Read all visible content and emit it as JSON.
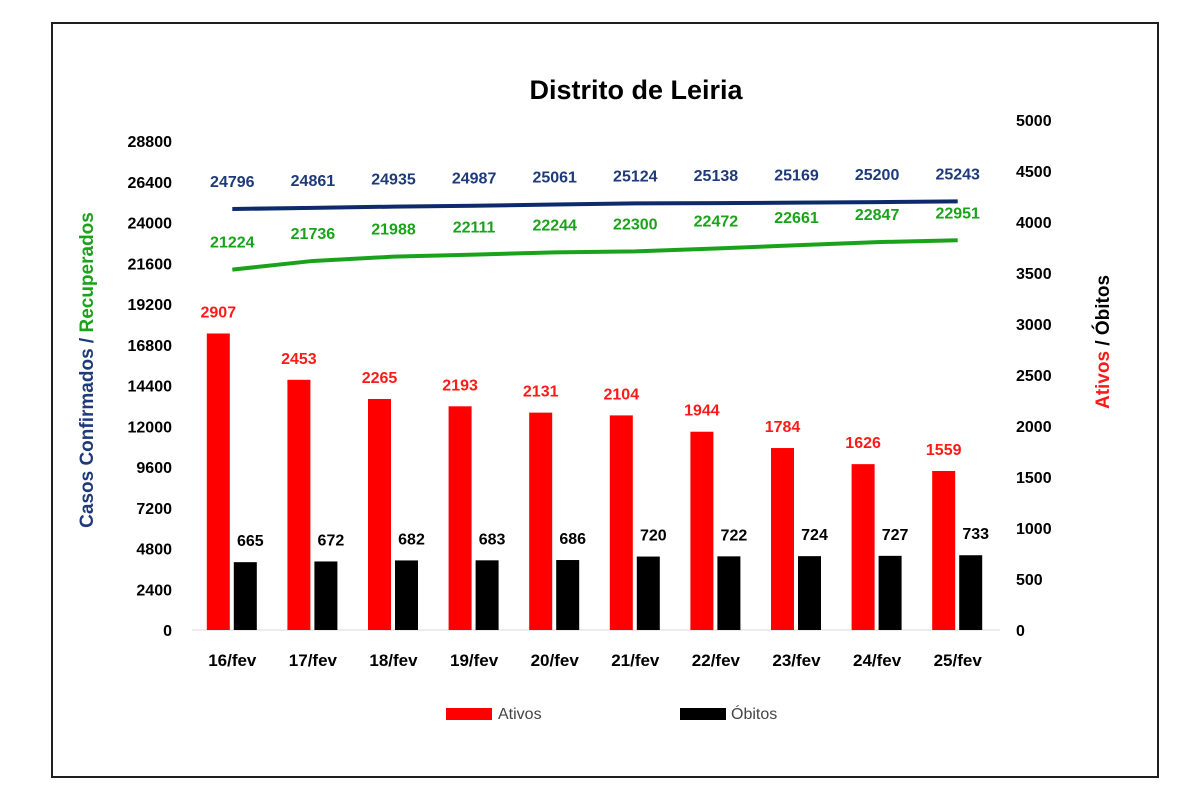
{
  "chart_data": {
    "type": "bar",
    "title": "Distrito de Leiria",
    "categories": [
      "16/fev",
      "17/fev",
      "18/fev",
      "19/fev",
      "20/fev",
      "21/fev",
      "22/fev",
      "23/fev",
      "24/fev",
      "25/fev"
    ],
    "left_axis": {
      "label_parts": [
        {
          "text": "Casos Confirmados / ",
          "color": "#1f3a7a"
        },
        {
          "text": "Recuperados",
          "color": "#1aa31a"
        }
      ],
      "ticks": [
        "0",
        "2400",
        "4800",
        "7200",
        "9600",
        "12000",
        "14400",
        "16800",
        "19200",
        "21600",
        "24000",
        "26400",
        "28800"
      ],
      "ylim": [
        0,
        28800
      ]
    },
    "right_axis": {
      "label_parts": [
        {
          "text": "Ativos",
          "color": "#ff1a1a"
        },
        {
          "text": " / Óbitos",
          "color": "#000000"
        }
      ],
      "ticks": [
        "0",
        "500",
        "1000",
        "1500",
        "2000",
        "2500",
        "3000",
        "3500",
        "4000",
        "4500",
        "5000"
      ],
      "ylim": [
        0,
        5000
      ]
    },
    "series": [
      {
        "name": "Ativos",
        "kind": "bar",
        "axis": "right",
        "color": "#ff0000",
        "label_color": "#ff1a1a",
        "values": [
          2907,
          2453,
          2265,
          2193,
          2131,
          2104,
          1944,
          1784,
          1626,
          1559
        ]
      },
      {
        "name": "Óbitos",
        "kind": "bar",
        "axis": "right",
        "color": "#000000",
        "label_color": "#000000",
        "values": [
          665,
          672,
          682,
          683,
          686,
          720,
          722,
          724,
          727,
          733
        ]
      },
      {
        "kind": "line",
        "axis": "left",
        "color": "#0d2a6b",
        "label_color": "#1f3a7a",
        "values": [
          24796,
          24861,
          24935,
          24987,
          25061,
          25124,
          25138,
          25169,
          25200,
          25243
        ]
      },
      {
        "kind": "line",
        "axis": "left",
        "color": "#1aa31a",
        "label_color": "#1aa31a",
        "values": [
          21224,
          21736,
          21988,
          22111,
          22244,
          22300,
          22472,
          22661,
          22847,
          22951
        ]
      }
    ],
    "legend": [
      "Ativos",
      "Óbitos"
    ],
    "legend_position": "bottom",
    "grid": false
  }
}
